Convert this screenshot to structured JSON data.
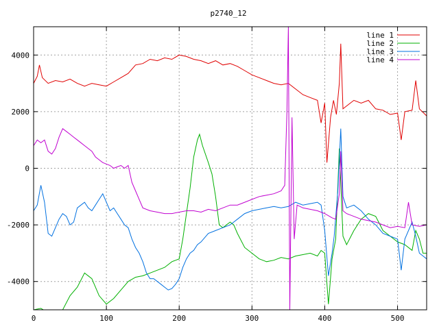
{
  "chart_data": {
    "type": "line",
    "title": "p2740_12",
    "xlabel": "",
    "ylabel": "",
    "xlim": [
      0,
      540
    ],
    "ylim": [
      -5000,
      5000
    ],
    "x_ticks": [
      0,
      100,
      200,
      300,
      400,
      500
    ],
    "y_ticks": [
      -4000,
      -2000,
      0,
      2000,
      4000
    ],
    "grid": true,
    "legend_position": "top-right",
    "series": [
      {
        "name": "line 1",
        "color": "#e00000",
        "points": [
          [
            0,
            3000
          ],
          [
            5,
            3250
          ],
          [
            8,
            3650
          ],
          [
            12,
            3200
          ],
          [
            20,
            3000
          ],
          [
            30,
            3100
          ],
          [
            40,
            3050
          ],
          [
            50,
            3150
          ],
          [
            60,
            3000
          ],
          [
            70,
            2900
          ],
          [
            80,
            3000
          ],
          [
            90,
            2950
          ],
          [
            100,
            2900
          ],
          [
            110,
            3050
          ],
          [
            120,
            3200
          ],
          [
            130,
            3350
          ],
          [
            140,
            3650
          ],
          [
            150,
            3700
          ],
          [
            160,
            3850
          ],
          [
            170,
            3800
          ],
          [
            180,
            3900
          ],
          [
            190,
            3850
          ],
          [
            200,
            4000
          ],
          [
            210,
            3950
          ],
          [
            220,
            3850
          ],
          [
            230,
            3800
          ],
          [
            240,
            3700
          ],
          [
            250,
            3800
          ],
          [
            260,
            3650
          ],
          [
            270,
            3700
          ],
          [
            280,
            3600
          ],
          [
            290,
            3450
          ],
          [
            300,
            3300
          ],
          [
            310,
            3200
          ],
          [
            320,
            3100
          ],
          [
            330,
            3000
          ],
          [
            340,
            2950
          ],
          [
            350,
            3000
          ],
          [
            360,
            2800
          ],
          [
            370,
            2600
          ],
          [
            380,
            2500
          ],
          [
            390,
            2400
          ],
          [
            395,
            1600
          ],
          [
            400,
            2300
          ],
          [
            403,
            200
          ],
          [
            408,
            1800
          ],
          [
            412,
            2400
          ],
          [
            416,
            1900
          ],
          [
            420,
            3000
          ],
          [
            422,
            4400
          ],
          [
            425,
            2100
          ],
          [
            430,
            2200
          ],
          [
            440,
            2400
          ],
          [
            450,
            2300
          ],
          [
            460,
            2400
          ],
          [
            470,
            2100
          ],
          [
            480,
            2050
          ],
          [
            490,
            1900
          ],
          [
            500,
            1950
          ],
          [
            505,
            1000
          ],
          [
            510,
            2000
          ],
          [
            520,
            2050
          ],
          [
            525,
            3100
          ],
          [
            530,
            2100
          ],
          [
            540,
            1850
          ]
        ]
      },
      {
        "name": "line 2",
        "color": "#00b000",
        "points": [
          [
            0,
            -5000
          ],
          [
            10,
            -4950
          ],
          [
            20,
            -5100
          ],
          [
            30,
            -5300
          ],
          [
            40,
            -5000
          ],
          [
            50,
            -4500
          ],
          [
            60,
            -4200
          ],
          [
            70,
            -3700
          ],
          [
            80,
            -3900
          ],
          [
            90,
            -4500
          ],
          [
            100,
            -4800
          ],
          [
            110,
            -4600
          ],
          [
            120,
            -4300
          ],
          [
            130,
            -4000
          ],
          [
            140,
            -3850
          ],
          [
            150,
            -3800
          ],
          [
            160,
            -3700
          ],
          [
            170,
            -3600
          ],
          [
            180,
            -3500
          ],
          [
            190,
            -3300
          ],
          [
            200,
            -3200
          ],
          [
            205,
            -2500
          ],
          [
            210,
            -1600
          ],
          [
            215,
            -700
          ],
          [
            220,
            400
          ],
          [
            225,
            1000
          ],
          [
            228,
            1200
          ],
          [
            232,
            800
          ],
          [
            240,
            200
          ],
          [
            245,
            -200
          ],
          [
            250,
            -1000
          ],
          [
            255,
            -2000
          ],
          [
            260,
            -2100
          ],
          [
            270,
            -1900
          ],
          [
            275,
            -2000
          ],
          [
            280,
            -2300
          ],
          [
            290,
            -2800
          ],
          [
            300,
            -3000
          ],
          [
            310,
            -3200
          ],
          [
            320,
            -3300
          ],
          [
            330,
            -3250
          ],
          [
            340,
            -3150
          ],
          [
            350,
            -3200
          ],
          [
            360,
            -3100
          ],
          [
            370,
            -3050
          ],
          [
            380,
            -3000
          ],
          [
            390,
            -3100
          ],
          [
            395,
            -2900
          ],
          [
            400,
            -3000
          ],
          [
            405,
            -4800
          ],
          [
            410,
            -3200
          ],
          [
            415,
            -2500
          ],
          [
            420,
            700
          ],
          [
            425,
            -2400
          ],
          [
            430,
            -2700
          ],
          [
            440,
            -2200
          ],
          [
            450,
            -1800
          ],
          [
            460,
            -1600
          ],
          [
            470,
            -1700
          ],
          [
            480,
            -2200
          ],
          [
            490,
            -2400
          ],
          [
            500,
            -2600
          ],
          [
            510,
            -2700
          ],
          [
            520,
            -2900
          ],
          [
            525,
            -2200
          ],
          [
            530,
            -2500
          ],
          [
            535,
            -3000
          ],
          [
            540,
            -3000
          ]
        ]
      },
      {
        "name": "line 3",
        "color": "#0070e0",
        "points": [
          [
            0,
            -1500
          ],
          [
            5,
            -1300
          ],
          [
            10,
            -600
          ],
          [
            15,
            -1200
          ],
          [
            20,
            -2300
          ],
          [
            25,
            -2400
          ],
          [
            30,
            -2100
          ],
          [
            35,
            -1800
          ],
          [
            40,
            -1600
          ],
          [
            45,
            -1700
          ],
          [
            50,
            -2000
          ],
          [
            55,
            -1900
          ],
          [
            60,
            -1400
          ],
          [
            65,
            -1300
          ],
          [
            70,
            -1200
          ],
          [
            75,
            -1400
          ],
          [
            80,
            -1500
          ],
          [
            85,
            -1300
          ],
          [
            90,
            -1100
          ],
          [
            95,
            -900
          ],
          [
            100,
            -1200
          ],
          [
            105,
            -1500
          ],
          [
            110,
            -1400
          ],
          [
            115,
            -1600
          ],
          [
            120,
            -1800
          ],
          [
            125,
            -2000
          ],
          [
            130,
            -2100
          ],
          [
            135,
            -2500
          ],
          [
            140,
            -2800
          ],
          [
            145,
            -3000
          ],
          [
            150,
            -3300
          ],
          [
            155,
            -3700
          ],
          [
            160,
            -3900
          ],
          [
            165,
            -3900
          ],
          [
            170,
            -4000
          ],
          [
            175,
            -4100
          ],
          [
            180,
            -4200
          ],
          [
            185,
            -4300
          ],
          [
            190,
            -4250
          ],
          [
            195,
            -4100
          ],
          [
            200,
            -3900
          ],
          [
            205,
            -3500
          ],
          [
            210,
            -3200
          ],
          [
            215,
            -3000
          ],
          [
            220,
            -2900
          ],
          [
            225,
            -2700
          ],
          [
            230,
            -2600
          ],
          [
            240,
            -2300
          ],
          [
            250,
            -2200
          ],
          [
            260,
            -2100
          ],
          [
            270,
            -2000
          ],
          [
            280,
            -1800
          ],
          [
            290,
            -1600
          ],
          [
            300,
            -1500
          ],
          [
            310,
            -1450
          ],
          [
            320,
            -1400
          ],
          [
            330,
            -1350
          ],
          [
            340,
            -1400
          ],
          [
            350,
            -1350
          ],
          [
            360,
            -1200
          ],
          [
            370,
            -1300
          ],
          [
            380,
            -1250
          ],
          [
            390,
            -1200
          ],
          [
            395,
            -1300
          ],
          [
            400,
            -2200
          ],
          [
            405,
            -3800
          ],
          [
            410,
            -3000
          ],
          [
            413,
            -2400
          ],
          [
            418,
            -800
          ],
          [
            422,
            1400
          ],
          [
            425,
            -1000
          ],
          [
            430,
            -1400
          ],
          [
            440,
            -1300
          ],
          [
            450,
            -1500
          ],
          [
            460,
            -1800
          ],
          [
            470,
            -2000
          ],
          [
            480,
            -2300
          ],
          [
            490,
            -2400
          ],
          [
            500,
            -2500
          ],
          [
            505,
            -3600
          ],
          [
            510,
            -2500
          ],
          [
            520,
            -1900
          ],
          [
            525,
            -2400
          ],
          [
            530,
            -3000
          ],
          [
            535,
            -3100
          ],
          [
            540,
            -3200
          ]
        ]
      },
      {
        "name": "line 4",
        "color": "#c000d0",
        "points": [
          [
            0,
            800
          ],
          [
            5,
            1000
          ],
          [
            10,
            900
          ],
          [
            15,
            1000
          ],
          [
            20,
            600
          ],
          [
            25,
            500
          ],
          [
            30,
            700
          ],
          [
            35,
            1100
          ],
          [
            40,
            1400
          ],
          [
            45,
            1300
          ],
          [
            50,
            1200
          ],
          [
            55,
            1100
          ],
          [
            60,
            1000
          ],
          [
            65,
            900
          ],
          [
            70,
            800
          ],
          [
            75,
            700
          ],
          [
            80,
            600
          ],
          [
            85,
            400
          ],
          [
            90,
            300
          ],
          [
            95,
            200
          ],
          [
            100,
            150
          ],
          [
            105,
            100
          ],
          [
            110,
            0
          ],
          [
            115,
            50
          ],
          [
            120,
            100
          ],
          [
            125,
            0
          ],
          [
            130,
            100
          ],
          [
            135,
            -500
          ],
          [
            140,
            -800
          ],
          [
            145,
            -1100
          ],
          [
            150,
            -1400
          ],
          [
            160,
            -1500
          ],
          [
            170,
            -1550
          ],
          [
            180,
            -1600
          ],
          [
            190,
            -1600
          ],
          [
            200,
            -1550
          ],
          [
            210,
            -1500
          ],
          [
            220,
            -1500
          ],
          [
            230,
            -1550
          ],
          [
            240,
            -1450
          ],
          [
            250,
            -1500
          ],
          [
            260,
            -1400
          ],
          [
            270,
            -1300
          ],
          [
            280,
            -1300
          ],
          [
            290,
            -1200
          ],
          [
            300,
            -1100
          ],
          [
            310,
            -1000
          ],
          [
            320,
            -950
          ],
          [
            330,
            -900
          ],
          [
            340,
            -800
          ],
          [
            345,
            -600
          ],
          [
            348,
            2000
          ],
          [
            350,
            5000
          ],
          [
            352,
            -5000
          ],
          [
            355,
            1800
          ],
          [
            358,
            -2500
          ],
          [
            362,
            -1300
          ],
          [
            370,
            -1400
          ],
          [
            380,
            -1450
          ],
          [
            390,
            -1500
          ],
          [
            400,
            -1600
          ],
          [
            410,
            -1750
          ],
          [
            415,
            -1800
          ],
          [
            420,
            -900
          ],
          [
            422,
            600
          ],
          [
            425,
            -1500
          ],
          [
            430,
            -1600
          ],
          [
            440,
            -1700
          ],
          [
            450,
            -1800
          ],
          [
            460,
            -1850
          ],
          [
            470,
            -1900
          ],
          [
            480,
            -2000
          ],
          [
            490,
            -2100
          ],
          [
            500,
            -2050
          ],
          [
            510,
            -2100
          ],
          [
            515,
            -1200
          ],
          [
            520,
            -2000
          ],
          [
            530,
            -2050
          ],
          [
            540,
            -2000
          ]
        ]
      }
    ]
  }
}
